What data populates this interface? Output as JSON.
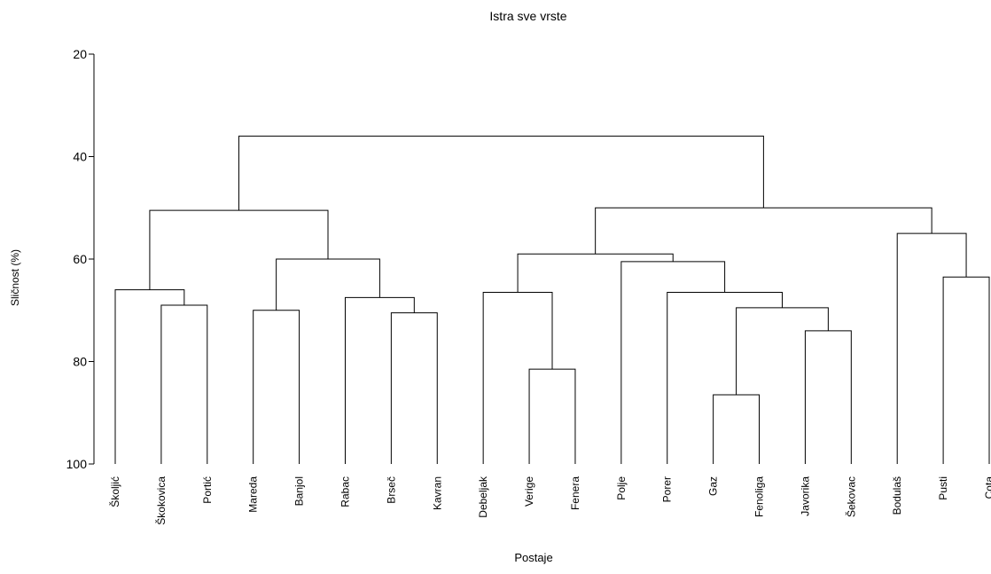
{
  "chart_data": {
    "type": "dendrogram",
    "title": "Istra sve vrste",
    "xlabel": "Postaje",
    "ylabel": "Sličnost (%)",
    "ylim": [
      20,
      100
    ],
    "yticks": [
      "20",
      "40",
      "60",
      "80",
      "100"
    ],
    "leaves": [
      "Školjić",
      "Škokovica",
      "Portić",
      "Mareda",
      "Banjol",
      "Rabac",
      "Brseč",
      "Kavran",
      "Debeljak",
      "Verige",
      "Fenera",
      "Polje",
      "Porer",
      "Gaz",
      "Fenoliga",
      "Javorika",
      "Šekovac",
      "Bodulaš",
      "Pusti",
      "Cota"
    ],
    "merges": [
      {
        "a": "Škokovica",
        "b": "Portić",
        "similarity": 69
      },
      {
        "a": "Školjić",
        "b": 0,
        "similarity": 66
      },
      {
        "a": "Mareda",
        "b": "Banjol",
        "similarity": 70
      },
      {
        "a": "Brseč",
        "b": "Kavran",
        "similarity": 70.5
      },
      {
        "a": "Rabac",
        "b": 3,
        "similarity": 67.5
      },
      {
        "a": 2,
        "b": 4,
        "similarity": 60
      },
      {
        "a": 1,
        "b": 5,
        "similarity": 50.5
      },
      {
        "a": "Verige",
        "b": "Fenera",
        "similarity": 81.5
      },
      {
        "a": "Debeljak",
        "b": 7,
        "similarity": 66.5
      },
      {
        "a": "Gaz",
        "b": "Fenoliga",
        "similarity": 86.5
      },
      {
        "a": "Javorika",
        "b": "Šekovac",
        "similarity": 74
      },
      {
        "a": 9,
        "b": 10,
        "similarity": 69.5
      },
      {
        "a": "Porer",
        "b": 11,
        "similarity": 66.5
      },
      {
        "a": "Polje",
        "b": 12,
        "similarity": 60.5
      },
      {
        "a": 8,
        "b": 13,
        "similarity": 59
      },
      {
        "a": "Pusti",
        "b": "Cota",
        "similarity": 63.5
      },
      {
        "a": "Bodulaš",
        "b": 15,
        "similarity": 55
      },
      {
        "a": 14,
        "b": 16,
        "similarity": 50
      },
      {
        "a": 6,
        "b": 17,
        "similarity": 36
      }
    ]
  }
}
